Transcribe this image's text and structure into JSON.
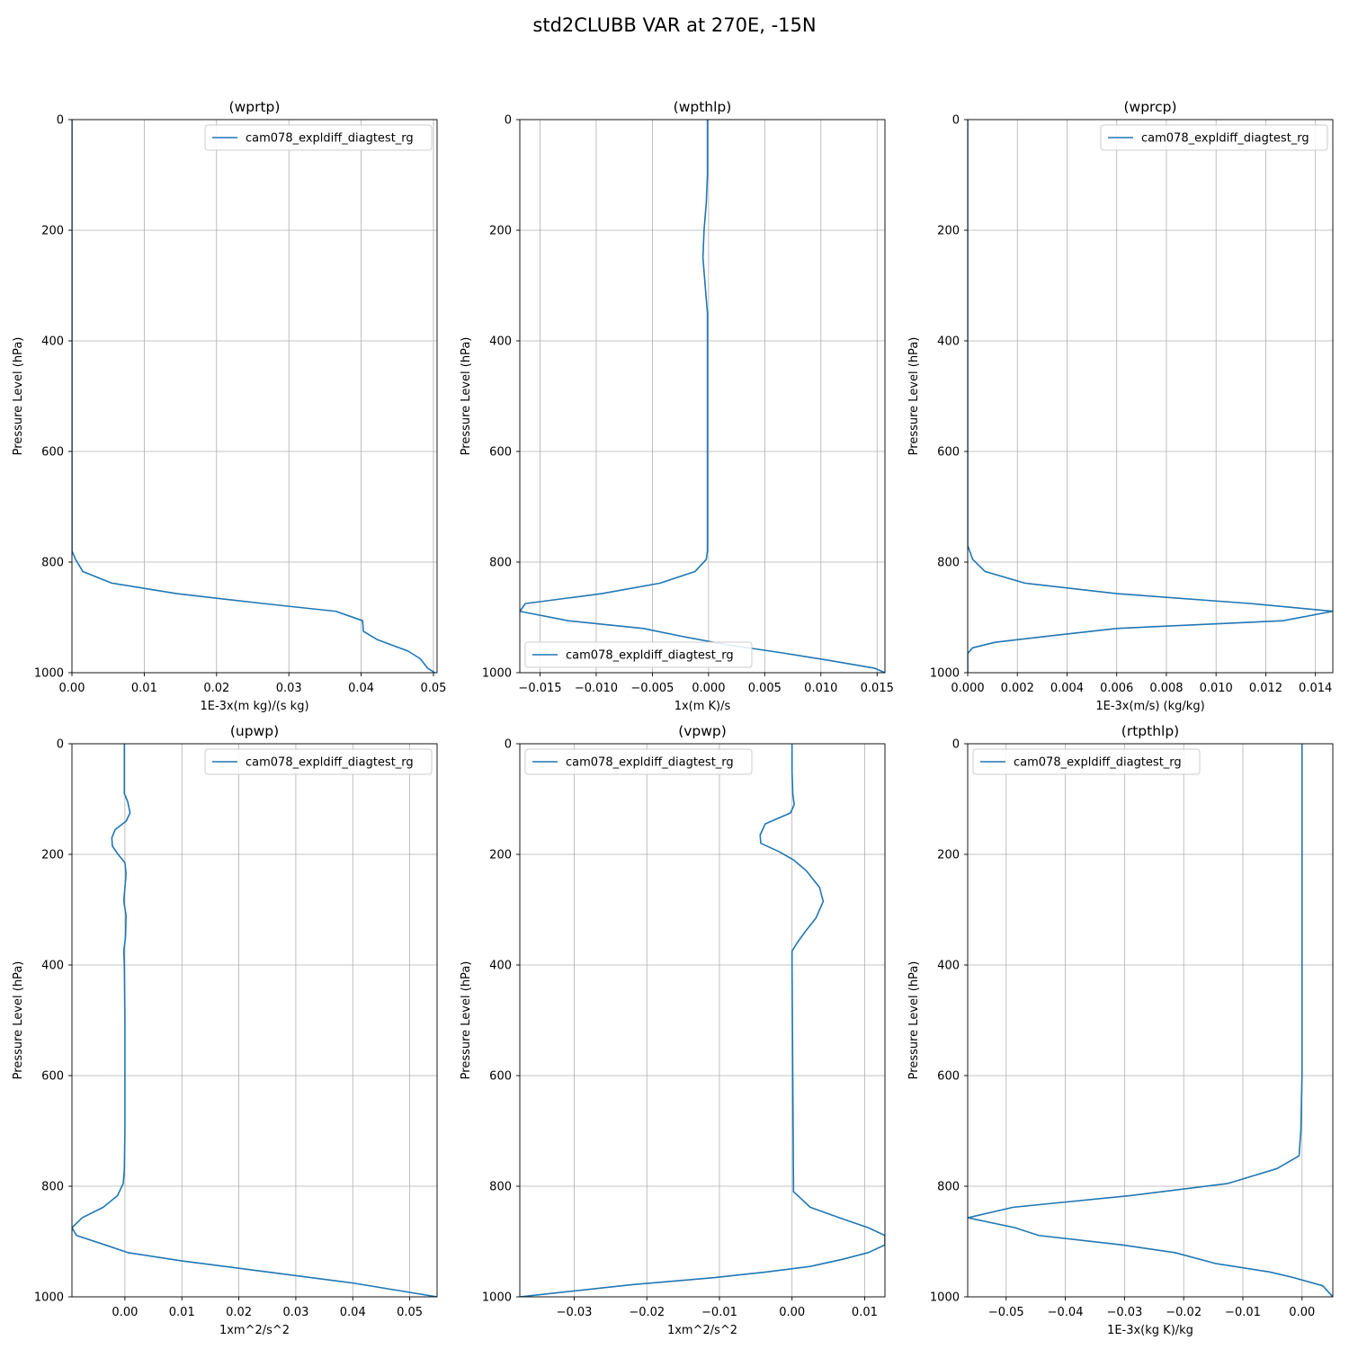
{
  "figure": {
    "title": "std2CLUBB VAR at 270E, -15N"
  },
  "colors": {
    "series": "#1f77b4",
    "grid": "#b0b0b0",
    "axis": "#000000",
    "legend_border": "#cccccc"
  },
  "chart_data": [
    {
      "type": "line",
      "title": "(wprtp)",
      "xlabel": "1E-3x(m kg)/(s kg)",
      "ylabel": "Pressure Level (hPa)",
      "xlim": [
        0.0,
        0.0505
      ],
      "ylim": [
        1000,
        0
      ],
      "y_inverted": true,
      "grid": true,
      "legend_position": "upper right",
      "xticks": [
        0.0,
        0.01,
        0.02,
        0.03,
        0.04,
        0.05
      ],
      "xtick_labels": [
        "0.00",
        "0.01",
        "0.02",
        "0.03",
        "0.04",
        "0.05"
      ],
      "yticks": [
        0,
        200,
        400,
        600,
        800,
        1000
      ],
      "ytick_labels": [
        "0",
        "200",
        "400",
        "600",
        "800",
        "1000"
      ],
      "series": [
        {
          "name": "cam078_expldiff_diagtest_rg",
          "x": [
            0.0,
            0.0,
            0.0,
            0.0,
            0.0,
            0.0,
            0.0,
            0.0,
            0.0,
            0.0,
            0.0005,
            0.0015,
            0.0055,
            0.0145,
            0.0265,
            0.0365,
            0.0402,
            0.0403,
            0.0422,
            0.0465,
            0.0482,
            0.0492,
            0.0502
          ],
          "y": [
            0,
            100,
            200,
            300,
            400,
            500,
            600,
            700,
            760,
            780,
            795,
            817,
            838,
            857,
            875,
            889,
            906,
            925,
            940,
            961,
            975,
            992,
            1000
          ]
        }
      ]
    },
    {
      "type": "line",
      "title": "(wpthlp)",
      "xlabel": "1x(m K)/s",
      "ylabel": "Pressure Level (hPa)",
      "xlim": [
        -0.0168,
        0.0157
      ],
      "ylim": [
        1000,
        0
      ],
      "y_inverted": true,
      "grid": true,
      "legend_position": "lower left",
      "xticks": [
        -0.015,
        -0.01,
        -0.005,
        0.0,
        0.005,
        0.01,
        0.015
      ],
      "xtick_labels": [
        "−0.015",
        "−0.010",
        "−0.005",
        "0.000",
        "0.005",
        "0.010",
        "0.015"
      ],
      "yticks": [
        0,
        200,
        400,
        600,
        800,
        1000
      ],
      "ytick_labels": [
        "0",
        "200",
        "400",
        "600",
        "800",
        "1000"
      ],
      "series": [
        {
          "name": "cam078_expldiff_diagtest_rg",
          "x": [
            -0.0001,
            -0.0001,
            -0.0001,
            -0.0002,
            -0.0004,
            -0.0005,
            -0.0003,
            -0.0001,
            -0.0001,
            -0.0001,
            -0.0001,
            -0.0001,
            -0.0001,
            -0.0002,
            -0.0012,
            -0.0043,
            -0.0095,
            -0.0163,
            -0.0168,
            -0.0125,
            -0.0058,
            -0.0022,
            0.0018,
            0.0062,
            0.0108,
            0.0148,
            0.0157
          ],
          "y": [
            0,
            50,
            100,
            150,
            200,
            250,
            300,
            350,
            400,
            500,
            600,
            700,
            780,
            795,
            817,
            838,
            857,
            875,
            889,
            906,
            920,
            935,
            950,
            963,
            978,
            992,
            1000
          ]
        }
      ]
    },
    {
      "type": "line",
      "title": "(wprcp)",
      "xlabel": "1E-3x(m/s) (kg/kg)",
      "ylabel": "Pressure Level (hPa)",
      "xlim": [
        0.0,
        0.0147
      ],
      "ylim": [
        1000,
        0
      ],
      "y_inverted": true,
      "grid": true,
      "legend_position": "upper right",
      "xticks": [
        0.0,
        0.002,
        0.004,
        0.006,
        0.008,
        0.01,
        0.012,
        0.014
      ],
      "xtick_labels": [
        "0.000",
        "0.002",
        "0.004",
        "0.006",
        "0.008",
        "0.010",
        "0.012",
        "0.014"
      ],
      "yticks": [
        0,
        200,
        400,
        600,
        800,
        1000
      ],
      "ytick_labels": [
        "0",
        "200",
        "400",
        "600",
        "800",
        "1000"
      ],
      "series": [
        {
          "name": "cam078_expldiff_diagtest_rg",
          "x": [
            0.0,
            0.0,
            0.0,
            0.0,
            0.0,
            0.0,
            0.0,
            0.0,
            0.0,
            0.0002,
            0.0007,
            0.0023,
            0.006,
            0.0114,
            0.0147,
            0.0127,
            0.006,
            0.0036,
            0.0011,
            0.0002,
            0.0,
            0.0
          ],
          "y": [
            0,
            100,
            200,
            300,
            400,
            500,
            600,
            700,
            770,
            795,
            817,
            838,
            857,
            875,
            889,
            906,
            920,
            932,
            945,
            955,
            965,
            1000
          ]
        }
      ]
    },
    {
      "type": "line",
      "title": "(upwp)",
      "xlabel": "1xm^2/s^2",
      "ylabel": "Pressure Level (hPa)",
      "xlim": [
        -0.0093,
        0.0548
      ],
      "ylim": [
        1000,
        0
      ],
      "y_inverted": true,
      "grid": true,
      "legend_position": "upper right",
      "xticks": [
        0.0,
        0.01,
        0.02,
        0.03,
        0.04,
        0.05
      ],
      "xtick_labels": [
        "0.00",
        "0.01",
        "0.02",
        "0.03",
        "0.04",
        "0.05"
      ],
      "yticks": [
        0,
        200,
        400,
        600,
        800,
        1000
      ],
      "ytick_labels": [
        "0",
        "200",
        "400",
        "600",
        "800",
        "1000"
      ],
      "series": [
        {
          "name": "cam078_expldiff_diagtest_rg",
          "x": [
            -0.0001,
            -0.0001,
            -0.0001,
            0.0005,
            0.0009,
            0.0002,
            -0.0017,
            -0.0023,
            -0.0022,
            -0.0012,
            0.0,
            0.0002,
            0.0,
            -0.0002,
            0.0002,
            0.0001,
            -0.0002,
            -0.0001,
            0.0,
            0.0,
            0.0,
            -0.0001,
            -0.0003,
            -0.0013,
            -0.0038,
            -0.0075,
            -0.0093,
            -0.0085,
            -0.0035,
            0.0005,
            0.01,
            0.025,
            0.04,
            0.0548
          ],
          "y": [
            0,
            50,
            90,
            105,
            125,
            140,
            155,
            170,
            185,
            200,
            215,
            235,
            260,
            285,
            310,
            350,
            375,
            400,
            500,
            600,
            700,
            770,
            795,
            817,
            838,
            857,
            875,
            889,
            906,
            920,
            935,
            955,
            975,
            1000
          ]
        }
      ]
    },
    {
      "type": "line",
      "title": "(vpwp)",
      "xlabel": "1xm^2/s^2",
      "ylabel": "Pressure Level (hPa)",
      "xlim": [
        -0.0375,
        0.0128
      ],
      "ylim": [
        1000,
        0
      ],
      "y_inverted": true,
      "grid": true,
      "legend_position": "upper left",
      "xticks": [
        -0.03,
        -0.02,
        -0.01,
        0.0,
        0.01
      ],
      "xtick_labels": [
        "−0.03",
        "−0.02",
        "−0.01",
        "0.00",
        "0.01"
      ],
      "yticks": [
        0,
        200,
        400,
        600,
        800,
        1000
      ],
      "ytick_labels": [
        "0",
        "200",
        "400",
        "600",
        "800",
        "1000"
      ],
      "series": [
        {
          "name": "cam078_expldiff_diagtest_rg",
          "x": [
            0.0,
            0.0,
            0.0001,
            0.0003,
            -0.0002,
            -0.0037,
            -0.0044,
            -0.0043,
            -0.0018,
            0.0002,
            0.002,
            0.0038,
            0.0043,
            0.0033,
            0.0018,
            0.0007,
            0.0,
            0.0,
            0.0001,
            0.0002,
            0.0002,
            0.0008,
            0.0025,
            0.0065,
            0.0105,
            0.0128,
            0.0128,
            0.0105,
            0.007,
            0.0025,
            -0.0035,
            -0.0105,
            -0.022,
            -0.0375
          ],
          "y": [
            0,
            50,
            90,
            110,
            125,
            145,
            165,
            180,
            195,
            210,
            230,
            260,
            285,
            315,
            340,
            360,
            375,
            400,
            600,
            795,
            810,
            817,
            838,
            857,
            875,
            889,
            906,
            920,
            932,
            945,
            955,
            965,
            978,
            1000
          ]
        }
      ]
    },
    {
      "type": "line",
      "title": "(rtpthlp)",
      "xlabel": "1E-3x(kg K)/kg",
      "ylabel": "Pressure Level (hPa)",
      "xlim": [
        -0.0565,
        0.0052
      ],
      "ylim": [
        1000,
        0
      ],
      "y_inverted": true,
      "grid": true,
      "legend_position": "upper left",
      "xticks": [
        -0.05,
        -0.04,
        -0.03,
        -0.02,
        -0.01,
        0.0
      ],
      "xtick_labels": [
        "−0.05",
        "−0.04",
        "−0.03",
        "−0.02",
        "−0.01",
        "0.00"
      ],
      "yticks": [
        0,
        200,
        400,
        600,
        800,
        1000
      ],
      "ytick_labels": [
        "0",
        "200",
        "400",
        "600",
        "800",
        "1000"
      ],
      "series": [
        {
          "name": "cam078_expldiff_diagtest_rg",
          "x": [
            0.0,
            0.0,
            0.0,
            0.0,
            0.0,
            0.0,
            0.0,
            -0.0002,
            -0.0005,
            -0.0042,
            -0.0125,
            -0.029,
            -0.0488,
            -0.0565,
            -0.0485,
            -0.0445,
            -0.0305,
            -0.0215,
            -0.0145,
            -0.0055,
            -0.0015,
            0.0035,
            0.0052
          ],
          "y": [
            0,
            100,
            200,
            300,
            400,
            500,
            600,
            700,
            745,
            768,
            795,
            817,
            838,
            857,
            875,
            889,
            906,
            920,
            940,
            955,
            965,
            980,
            1000
          ]
        }
      ]
    }
  ]
}
